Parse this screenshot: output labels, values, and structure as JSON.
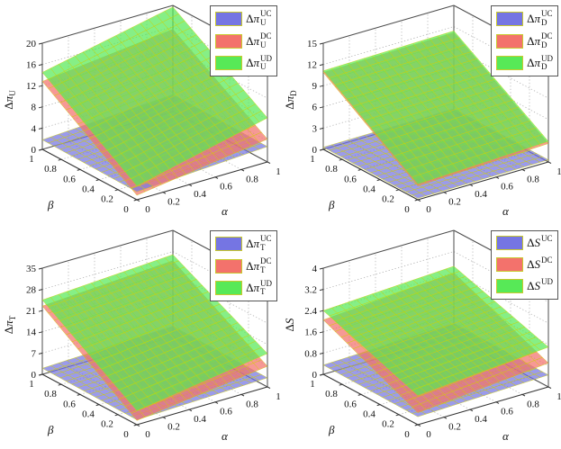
{
  "figure": {
    "background": "#ffffff",
    "rows": 2,
    "cols": 2
  },
  "colors": {
    "uc_blue": "#7575e3",
    "dc_red": "#f3726c",
    "ud_green": "#57e957",
    "mesh_edge": "#d2d200",
    "wall_grid": "#b3b3b3",
    "box_line": "#4d4d4d",
    "axis_line": "#333333",
    "tick_text": "#111111",
    "legend_border": "#555555",
    "legend_swatch_border": "#c9c92e"
  },
  "chart_data": [
    {
      "id": "top-left",
      "type": "surface",
      "zlabel": {
        "prefix": "Δ",
        "symbol": "π",
        "sub": "U"
      },
      "xlabel": "α",
      "ylabel": "β",
      "xticks": [
        "0",
        "0.2",
        "0.4",
        "0.6",
        "0.8",
        "1"
      ],
      "yticks": [
        "1",
        "0.8",
        "0.6",
        "0.4",
        "0.2",
        "0"
      ],
      "zticks": [
        "0",
        "4",
        "8",
        "12",
        "16",
        "20"
      ],
      "zlim": [
        0,
        20
      ],
      "xlim": [
        0,
        1
      ],
      "ylim": [
        0,
        1
      ],
      "legend_position": "top-right",
      "series": [
        {
          "name": {
            "prefix": "Δ",
            "symbol": "π",
            "sub": "U",
            "sup": "UC"
          },
          "color": "#7575e3",
          "corners": {
            "z00": 1.5,
            "z10": 2.9,
            "z01": 1.8,
            "z11": 3.2
          }
        },
        {
          "name": {
            "prefix": "Δ",
            "symbol": "π",
            "sub": "U",
            "sup": "DC"
          },
          "color": "#f3726c",
          "corners": {
            "z00": 0.85,
            "z10": 4.3,
            "z01": 12.8,
            "z11": 15.5
          }
        },
        {
          "name": {
            "prefix": "Δ",
            "symbol": "π",
            "sub": "U",
            "sup": "UD"
          },
          "color": "#57e957",
          "corners": {
            "z00": 2.6,
            "z10": 8.3,
            "z01": 14.5,
            "z11": 19.7
          }
        }
      ]
    },
    {
      "id": "top-right",
      "type": "surface",
      "zlabel": {
        "prefix": "Δ",
        "symbol": "π",
        "sub": "D"
      },
      "xlabel": "α",
      "ylabel": "β",
      "xticks": [
        "0",
        "0.2",
        "0.4",
        "0.6",
        "0.8",
        "1"
      ],
      "yticks": [
        "1",
        "0.8",
        "0.6",
        "0.4",
        "0.2",
        "0"
      ],
      "zticks": [
        "0",
        "3",
        "6",
        "9",
        "12",
        "15"
      ],
      "zlim": [
        0,
        15
      ],
      "xlim": [
        0,
        1
      ],
      "ylim": [
        0,
        1
      ],
      "legend_position": "top-right",
      "series": [
        {
          "name": {
            "prefix": "Δ",
            "symbol": "π",
            "sub": "D",
            "sup": "UC"
          },
          "color": "#7575e3",
          "corners": {
            "z00": 0.2,
            "z10": 0.3,
            "z01": 0.3,
            "z11": 0.4
          }
        },
        {
          "name": {
            "prefix": "Δ",
            "symbol": "π",
            "sub": "D",
            "sup": "DC"
          },
          "color": "#f3726c",
          "corners": {
            "z00": 1.95,
            "z10": 2.6,
            "z01": 10.85,
            "z11": 11.15
          }
        },
        {
          "name": {
            "prefix": "Δ",
            "symbol": "π",
            "sub": "D",
            "sup": "UD"
          },
          "color": "#57e957",
          "corners": {
            "z00": 2.2,
            "z10": 2.9,
            "z01": 11.1,
            "z11": 11.4
          }
        }
      ]
    },
    {
      "id": "bottom-left",
      "type": "surface",
      "zlabel": {
        "prefix": "Δ",
        "symbol": "π",
        "sub": "T"
      },
      "xlabel": "α",
      "ylabel": "β",
      "xticks": [
        "0",
        "0.2",
        "0.4",
        "0.6",
        "0.8",
        "1"
      ],
      "yticks": [
        "1",
        "0.8",
        "0.6",
        "0.4",
        "0.2",
        "0"
      ],
      "zticks": [
        "0",
        "7",
        "14",
        "21",
        "28",
        "35"
      ],
      "zlim": [
        0,
        35
      ],
      "xlim": [
        0,
        1
      ],
      "ylim": [
        0,
        1
      ],
      "legend_position": "top-right",
      "series": [
        {
          "name": {
            "prefix": "Δ",
            "symbol": "π",
            "sub": "T",
            "sup": "UC"
          },
          "color": "#7575e3",
          "corners": {
            "z00": 1.6,
            "z10": 3.0,
            "z01": 2.0,
            "z11": 3.4
          }
        },
        {
          "name": {
            "prefix": "Δ",
            "symbol": "π",
            "sub": "T",
            "sup": "DC"
          },
          "color": "#f3726c",
          "corners": {
            "z00": 1.4,
            "z10": 6.8,
            "z01": 22.5,
            "z11": 25.0
          }
        },
        {
          "name": {
            "prefix": "Δ",
            "symbol": "π",
            "sub": "T",
            "sup": "UD"
          },
          "color": "#57e957",
          "corners": {
            "z00": 4.6,
            "z10": 11.0,
            "z01": 24.5,
            "z11": 27.0
          }
        }
      ]
    },
    {
      "id": "bottom-right",
      "type": "surface",
      "zlabel": {
        "prefix": "Δ",
        "symbol": "S",
        "sub": ""
      },
      "xlabel": "α",
      "ylabel": "β",
      "xticks": [
        "0",
        "0.2",
        "0.4",
        "0.6",
        "0.8",
        "1"
      ],
      "yticks": [
        "1",
        "0.8",
        "0.6",
        "0.4",
        "0.2",
        "0"
      ],
      "zticks": [
        "0",
        "0.8",
        "1.6",
        "2.4",
        "3.2",
        "4"
      ],
      "zlim": [
        0,
        4
      ],
      "xlim": [
        0,
        1
      ],
      "ylim": [
        0,
        1
      ],
      "legend_position": "top-right",
      "series": [
        {
          "name": {
            "prefix": "Δ",
            "symbol": "S",
            "sub": "",
            "sup": "UC"
          },
          "color": "#7575e3",
          "corners": {
            "z00": 0.3,
            "z10": 0.45,
            "z01": 0.35,
            "z11": 0.5
          }
        },
        {
          "name": {
            "prefix": "Δ",
            "symbol": "S",
            "sub": "",
            "sup": "DC"
          },
          "color": "#f3726c",
          "corners": {
            "z00": 0.45,
            "z10": 0.9,
            "z01": 2.05,
            "z11": 2.4
          }
        },
        {
          "name": {
            "prefix": "Δ",
            "symbol": "S",
            "sub": "",
            "sup": "UD"
          },
          "color": "#57e957",
          "corners": {
            "z00": 1.1,
            "z10": 1.5,
            "z01": 2.4,
            "z11": 2.65
          }
        }
      ]
    }
  ]
}
